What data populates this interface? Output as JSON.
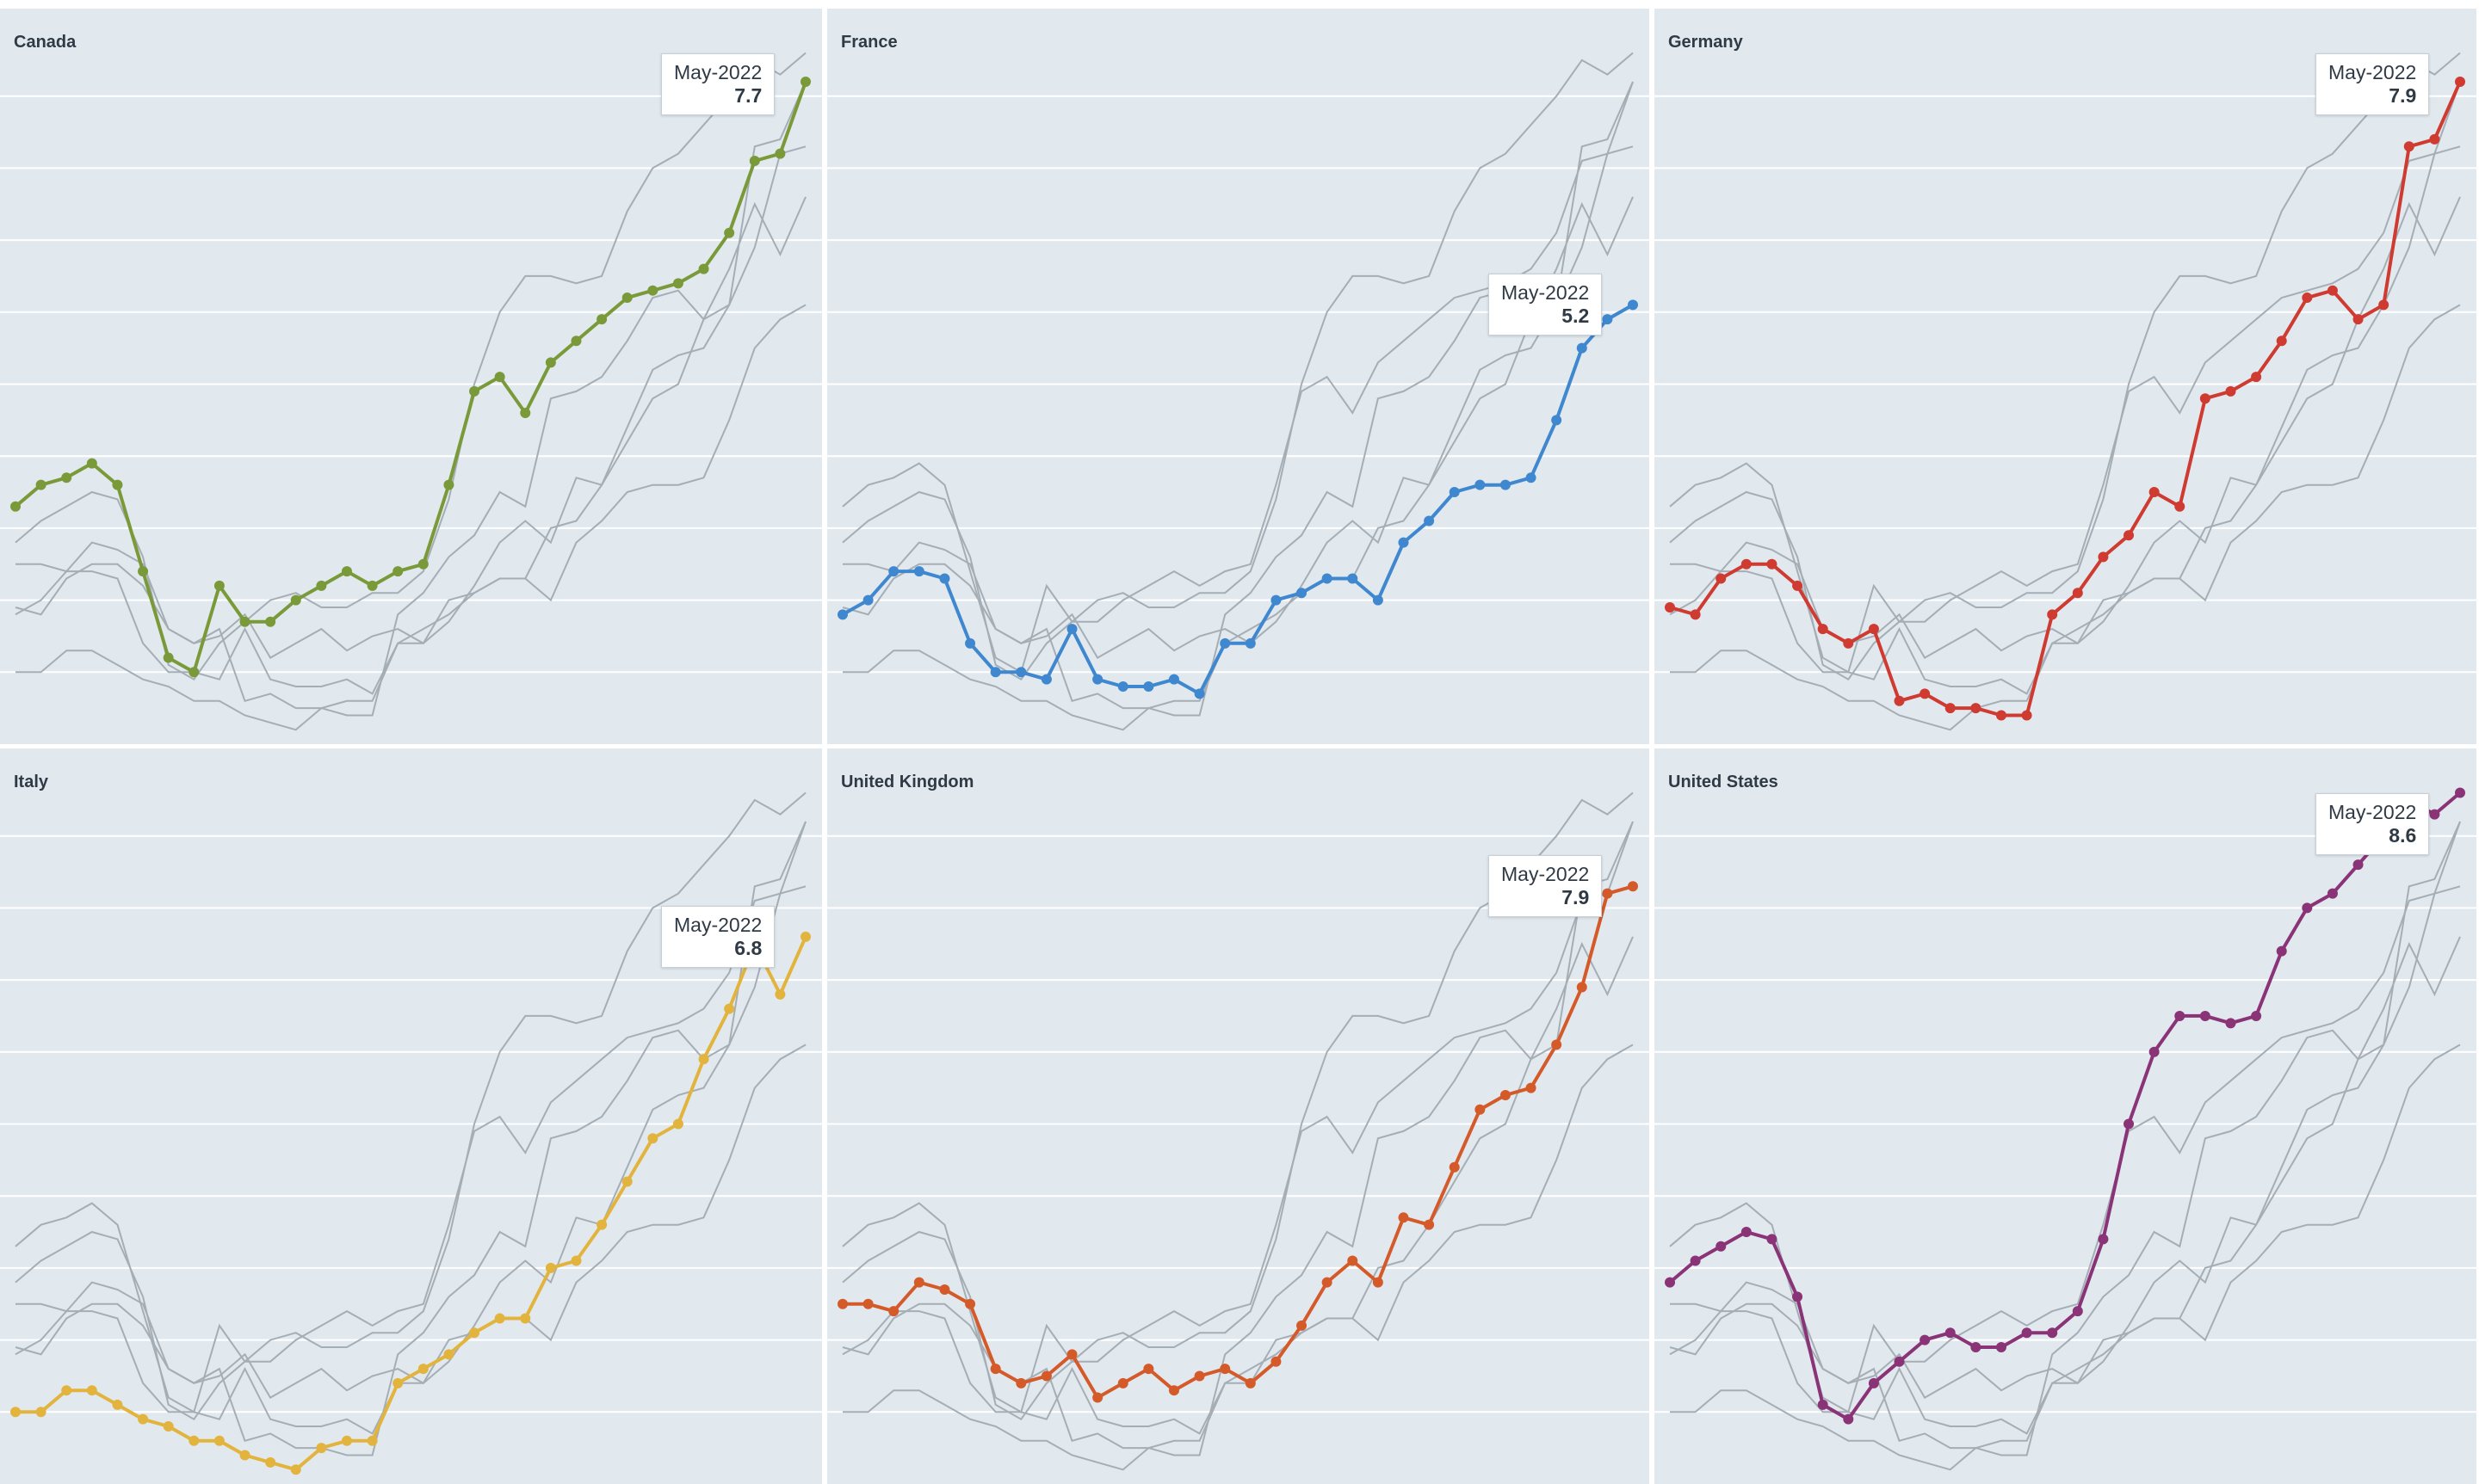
{
  "chart_data": [
    {
      "type": "line",
      "title": "Canada",
      "color": "#7a9a3a",
      "values": [
        3.3,
        3.6,
        3.7,
        3.9,
        3.6,
        2.4,
        1.2,
        1.0,
        2.2,
        1.7,
        1.7,
        2.0,
        2.2,
        2.4,
        2.2,
        2.4,
        2.5,
        3.6,
        4.9,
        5.1,
        4.6,
        5.3,
        5.6,
        5.9,
        6.2,
        6.3,
        6.4,
        6.6,
        7.1,
        8.1,
        8.2,
        9.2
      ],
      "callout": {
        "date": "May-2022",
        "value": "7.7"
      }
    },
    {
      "type": "line",
      "title": "France",
      "color": "#3f87cf",
      "values": [
        1.8,
        2.0,
        2.4,
        2.4,
        2.3,
        1.4,
        1.0,
        1.0,
        0.9,
        1.6,
        0.9,
        0.8,
        0.8,
        0.9,
        0.7,
        1.4,
        1.4,
        2.0,
        2.1,
        2.3,
        2.3,
        2.0,
        2.8,
        3.1,
        3.5,
        3.6,
        3.6,
        3.7,
        4.5,
        5.5,
        5.9,
        6.1
      ],
      "callout": {
        "date": "May-2022",
        "value": "5.2"
      }
    },
    {
      "type": "line",
      "title": "Germany",
      "color": "#cf3a31",
      "values": [
        1.9,
        1.8,
        2.3,
        2.5,
        2.5,
        2.2,
        1.6,
        1.4,
        1.6,
        0.6,
        0.7,
        0.5,
        0.5,
        0.4,
        0.4,
        1.8,
        2.1,
        2.6,
        2.9,
        3.5,
        3.3,
        4.8,
        4.9,
        5.1,
        5.6,
        6.2,
        6.3,
        5.9,
        6.1,
        8.3,
        8.4,
        9.2
      ],
      "callout": {
        "date": "May-2022",
        "value": "7.9"
      }
    },
    {
      "type": "line",
      "title": "Italy",
      "color": "#e2b43d",
      "values": [
        1.0,
        1.0,
        1.3,
        1.3,
        1.1,
        0.9,
        0.8,
        0.6,
        0.6,
        0.4,
        0.3,
        0.2,
        0.5,
        0.6,
        0.6,
        1.4,
        1.6,
        1.8,
        2.1,
        2.3,
        2.3,
        3.0,
        3.1,
        3.6,
        4.2,
        4.8,
        5.0,
        5.9,
        6.6,
        7.5,
        6.8,
        7.6
      ],
      "callout": {
        "date": "May-2022",
        "value": "6.8"
      }
    },
    {
      "type": "line",
      "title": "United Kingdom",
      "color": "#d55a2a",
      "values": [
        2.5,
        2.5,
        2.4,
        2.8,
        2.7,
        2.5,
        1.6,
        1.4,
        1.5,
        1.8,
        1.2,
        1.4,
        1.6,
        1.3,
        1.5,
        1.6,
        1.4,
        1.7,
        2.2,
        2.8,
        3.1,
        2.8,
        3.7,
        3.6,
        4.4,
        5.2,
        5.4,
        5.5,
        6.1,
        6.9,
        8.2,
        8.3
      ],
      "callout": {
        "date": "May-2022",
        "value": "7.9"
      }
    },
    {
      "type": "line",
      "title": "United States",
      "color": "#8a3377",
      "values": [
        2.8,
        3.1,
        3.3,
        3.5,
        3.4,
        2.6,
        1.1,
        0.9,
        1.4,
        1.7,
        2.0,
        2.1,
        1.9,
        1.9,
        2.1,
        2.1,
        2.4,
        3.4,
        5.0,
        6.0,
        6.5,
        6.5,
        6.4,
        6.5,
        7.4,
        8.0,
        8.2,
        8.6,
        9.0,
        9.5,
        9.3,
        9.6
      ],
      "callout": {
        "date": "May-2022",
        "value": "8.6"
      }
    }
  ]
}
